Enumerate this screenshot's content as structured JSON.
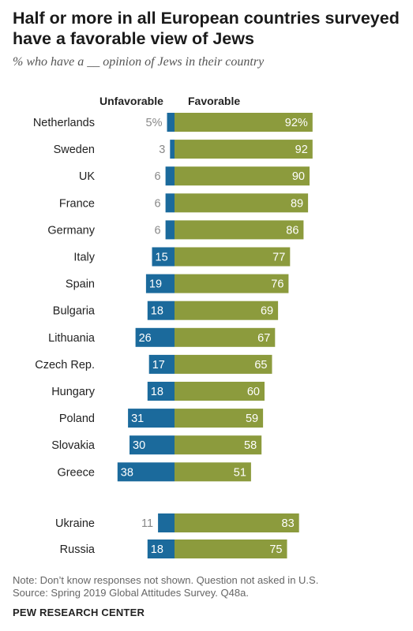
{
  "title": "Half or more in all European countries surveyed have a favorable view of Jews",
  "subtitle": "% who have a __ opinion of Jews in their country",
  "note": "Note: Don’t know responses not shown. Question not asked in U.S.",
  "source": "Source: Spring 2019 Global Attitudes Survey. Q48a.",
  "brand": "PEW RESEARCH CENTER",
  "colors": {
    "unfavorable": "#1b6a9c",
    "favorable": "#8c9b3d",
    "muted_label": "#888888"
  },
  "chart_data": {
    "type": "bar",
    "orientation": "horizontal-diverging",
    "legend_position": "top",
    "series": [
      {
        "name": "Unfavorable",
        "values": [
          5,
          3,
          6,
          6,
          6,
          15,
          19,
          18,
          26,
          17,
          18,
          31,
          30,
          38,
          11,
          18
        ]
      },
      {
        "name": "Favorable",
        "values": [
          92,
          92,
          90,
          89,
          86,
          77,
          76,
          69,
          67,
          65,
          60,
          59,
          58,
          51,
          83,
          75
        ]
      }
    ],
    "categories": [
      "Netherlands",
      "Sweden",
      "UK",
      "France",
      "Germany",
      "Italy",
      "Spain",
      "Bulgaria",
      "Lithuania",
      "Czech Rep.",
      "Hungary",
      "Poland",
      "Slovakia",
      "Greece",
      "Ukraine",
      "Russia"
    ],
    "groups": [
      {
        "name": "eu",
        "count": 14
      },
      {
        "name": "non-eu",
        "count": 2
      }
    ],
    "value_labels": {
      "unfavorable": [
        "5%",
        "3",
        "6",
        "6",
        "6",
        "15",
        "19",
        "18",
        "26",
        "17",
        "18",
        "31",
        "30",
        "38",
        "11",
        "18"
      ],
      "favorable": [
        "92%",
        "92",
        "90",
        "89",
        "86",
        "77",
        "76",
        "69",
        "67",
        "65",
        "60",
        "59",
        "58",
        "51",
        "83",
        "75"
      ]
    },
    "grid": false
  }
}
